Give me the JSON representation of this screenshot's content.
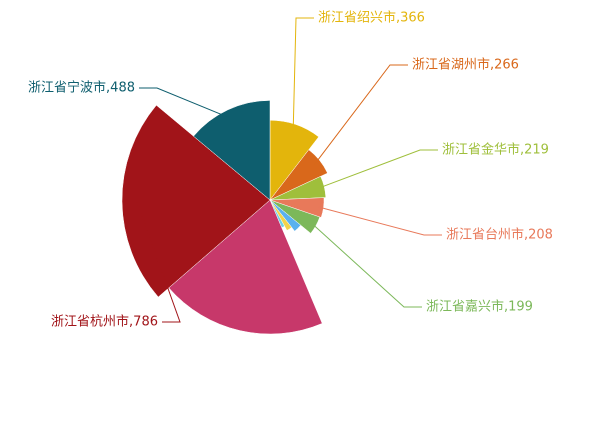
{
  "chart_data": {
    "type": "rose",
    "labels": [
      "浙江省绍兴市,366",
      "浙江省湖州市,266",
      "浙江省金华市,219",
      "浙江省台州市,208",
      "浙江省嘉兴市,199",
      null,
      null,
      null,
      null,
      "浙江省杭州市,786",
      "浙江省宁波市,488"
    ],
    "values": [
      366,
      266,
      219,
      208,
      199,
      120,
      90,
      60,
      700,
      786,
      488
    ],
    "colors": [
      "#e3b50c",
      "#d9681b",
      "#9fbf3b",
      "#e8795a",
      "#7cb85a",
      "#5ab1ef",
      "#f3d34b",
      "#6fd0e8",
      "#c7386a",
      "#a11419",
      "#0e5e6e"
    ]
  }
}
